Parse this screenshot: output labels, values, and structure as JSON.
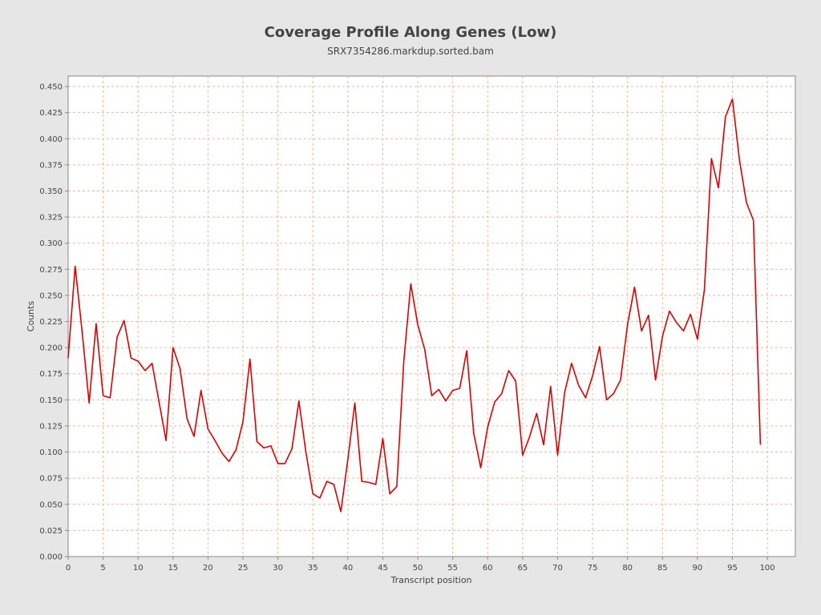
{
  "title": "Coverage Profile Along Genes (Low)",
  "subtitle": "SRX7354286.markdup.sorted.bam",
  "chart_data": {
    "type": "line",
    "title": "Coverage Profile Along Genes (Low)",
    "subtitle": "SRX7354286.markdup.sorted.bam",
    "xlabel": "Transcript position",
    "ylabel": "Counts",
    "xlim": [
      0,
      104
    ],
    "ylim": [
      0,
      0.46
    ],
    "xticks": [
      0,
      5,
      10,
      15,
      20,
      25,
      30,
      35,
      40,
      45,
      50,
      55,
      60,
      65,
      70,
      75,
      80,
      85,
      90,
      95,
      100
    ],
    "yticks": [
      "0.000",
      "0.025",
      "0.050",
      "0.075",
      "0.100",
      "0.125",
      "0.150",
      "0.175",
      "0.200",
      "0.225",
      "0.250",
      "0.275",
      "0.300",
      "0.325",
      "0.350",
      "0.375",
      "0.400",
      "0.425",
      "0.450"
    ],
    "grid": true,
    "line_color": "#dd0000",
    "grid_color": "#f0b890",
    "plot_background": "#ffffff",
    "x": [
      0,
      1,
      2,
      3,
      4,
      5,
      6,
      7,
      8,
      9,
      10,
      11,
      12,
      13,
      14,
      15,
      16,
      17,
      18,
      19,
      20,
      21,
      22,
      23,
      24,
      25,
      26,
      27,
      28,
      29,
      30,
      31,
      32,
      33,
      34,
      35,
      36,
      37,
      38,
      39,
      40,
      41,
      42,
      43,
      44,
      45,
      46,
      47,
      48,
      49,
      50,
      51,
      52,
      53,
      54,
      55,
      56,
      57,
      58,
      59,
      60,
      61,
      62,
      63,
      64,
      65,
      66,
      67,
      68,
      69,
      70,
      71,
      72,
      73,
      74,
      75,
      76,
      77,
      78,
      79,
      80,
      81,
      82,
      83,
      84,
      85,
      86,
      87,
      88,
      89,
      90,
      91,
      92,
      93,
      94,
      95,
      96,
      97,
      98,
      99
    ],
    "y": [
      0.19,
      0.278,
      0.215,
      0.147,
      0.223,
      0.154,
      0.152,
      0.21,
      0.226,
      0.19,
      0.187,
      0.178,
      0.185,
      0.148,
      0.111,
      0.2,
      0.18,
      0.132,
      0.115,
      0.159,
      0.122,
      0.111,
      0.099,
      0.091,
      0.102,
      0.129,
      0.189,
      0.11,
      0.104,
      0.106,
      0.089,
      0.089,
      0.103,
      0.149,
      0.1,
      0.06,
      0.056,
      0.072,
      0.069,
      0.043,
      0.093,
      0.147,
      0.072,
      0.071,
      0.069,
      0.113,
      0.06,
      0.067,
      0.187,
      0.261,
      0.222,
      0.198,
      0.154,
      0.16,
      0.149,
      0.159,
      0.161,
      0.197,
      0.118,
      0.085,
      0.124,
      0.148,
      0.156,
      0.178,
      0.168,
      0.097,
      0.115,
      0.137,
      0.107,
      0.163,
      0.097,
      0.157,
      0.185,
      0.164,
      0.152,
      0.173,
      0.201,
      0.15,
      0.156,
      0.169,
      0.222,
      0.258,
      0.216,
      0.231,
      0.169,
      0.211,
      0.235,
      0.224,
      0.216,
      0.232,
      0.208,
      0.256,
      0.381,
      0.353,
      0.421,
      0.438,
      0.38,
      0.339,
      0.322,
      0.107
    ]
  }
}
